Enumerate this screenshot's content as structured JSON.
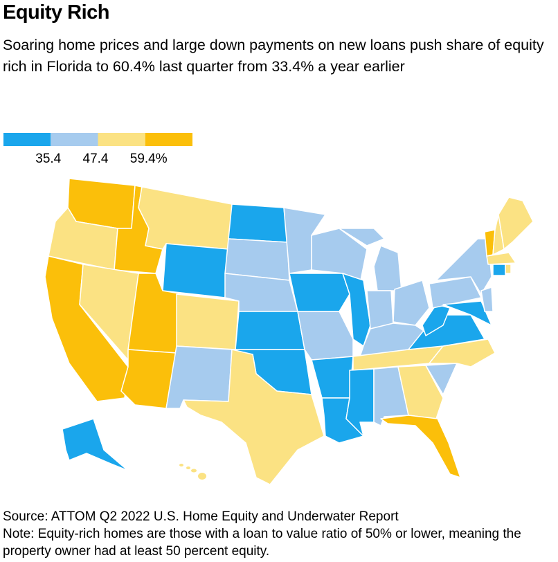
{
  "chart_data": {
    "type": "map",
    "title": "Equity Rich",
    "subtitle": "Soaring home prices and large down payments on new loans push share of equity rich in Florida to 60.4% last quarter from 33.4% a year earlier",
    "legend": {
      "colors": [
        "#1aa6ec",
        "#a6cbee",
        "#fbe283",
        "#fbbf0a"
      ],
      "ticks": [
        35.4,
        47.4,
        {
          "value": 59.4,
          "label": "59.4%"
        }
      ]
    },
    "source": "Source: ATTOM Q2 2022 U.S. Home Equity and Underwater Report",
    "note": "Note: Equity-rich homes are those with a loan to value ratio of 50% or lower, meaning the property owner had at least 50 percent equity."
  }
}
